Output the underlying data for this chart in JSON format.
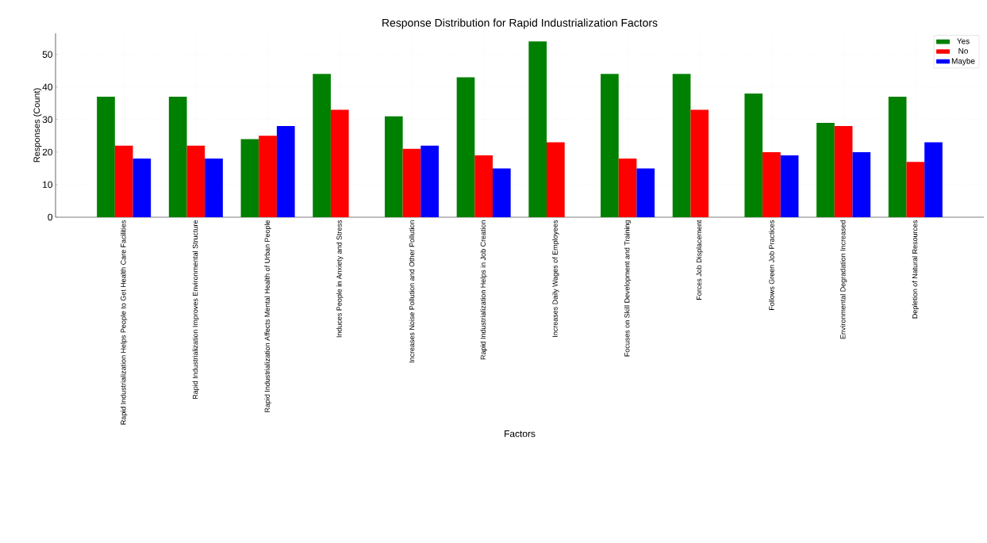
{
  "chart_data": {
    "type": "bar",
    "title": "Response Distribution for Rapid Industrialization Factors",
    "xlabel": "Factors",
    "ylabel": "Responses (Count)",
    "categories": [
      "Rapid Industrialization Helps People to Get Health Care Facilities",
      "Rapid Industrialization Improves Environmental Structure",
      "Rapid Industrialization Affects Mental Health of Urban People",
      "Induces People in Anxiety and Stress",
      "Increases Noise Pollution and Other Pollution",
      "Rapid Industrialization Helps in Job Creation",
      "Increases Daily Wages of Employees",
      "Focuses on Skill Development and Training",
      "Forces Job Displacement",
      "Follows Green Job Practices",
      "Environmental Degradation Increased",
      "Depletion of Natural Resources"
    ],
    "series": [
      {
        "name": "Yes",
        "color": "#008000",
        "values": [
          37,
          37,
          24,
          44,
          31,
          43,
          54,
          44,
          44,
          38,
          29,
          37
        ]
      },
      {
        "name": "No",
        "color": "#ff0000",
        "values": [
          22,
          22,
          25,
          33,
          21,
          19,
          23,
          18,
          33,
          20,
          28,
          17
        ]
      },
      {
        "name": "Maybe",
        "color": "#0000ff",
        "values": [
          18,
          18,
          28,
          null,
          22,
          15,
          null,
          15,
          null,
          19,
          20,
          23
        ]
      }
    ],
    "ylim": [
      0,
      56.5
    ],
    "yticks": [
      0,
      10,
      20,
      30,
      40,
      50
    ],
    "grid": true,
    "legend": "top right"
  }
}
